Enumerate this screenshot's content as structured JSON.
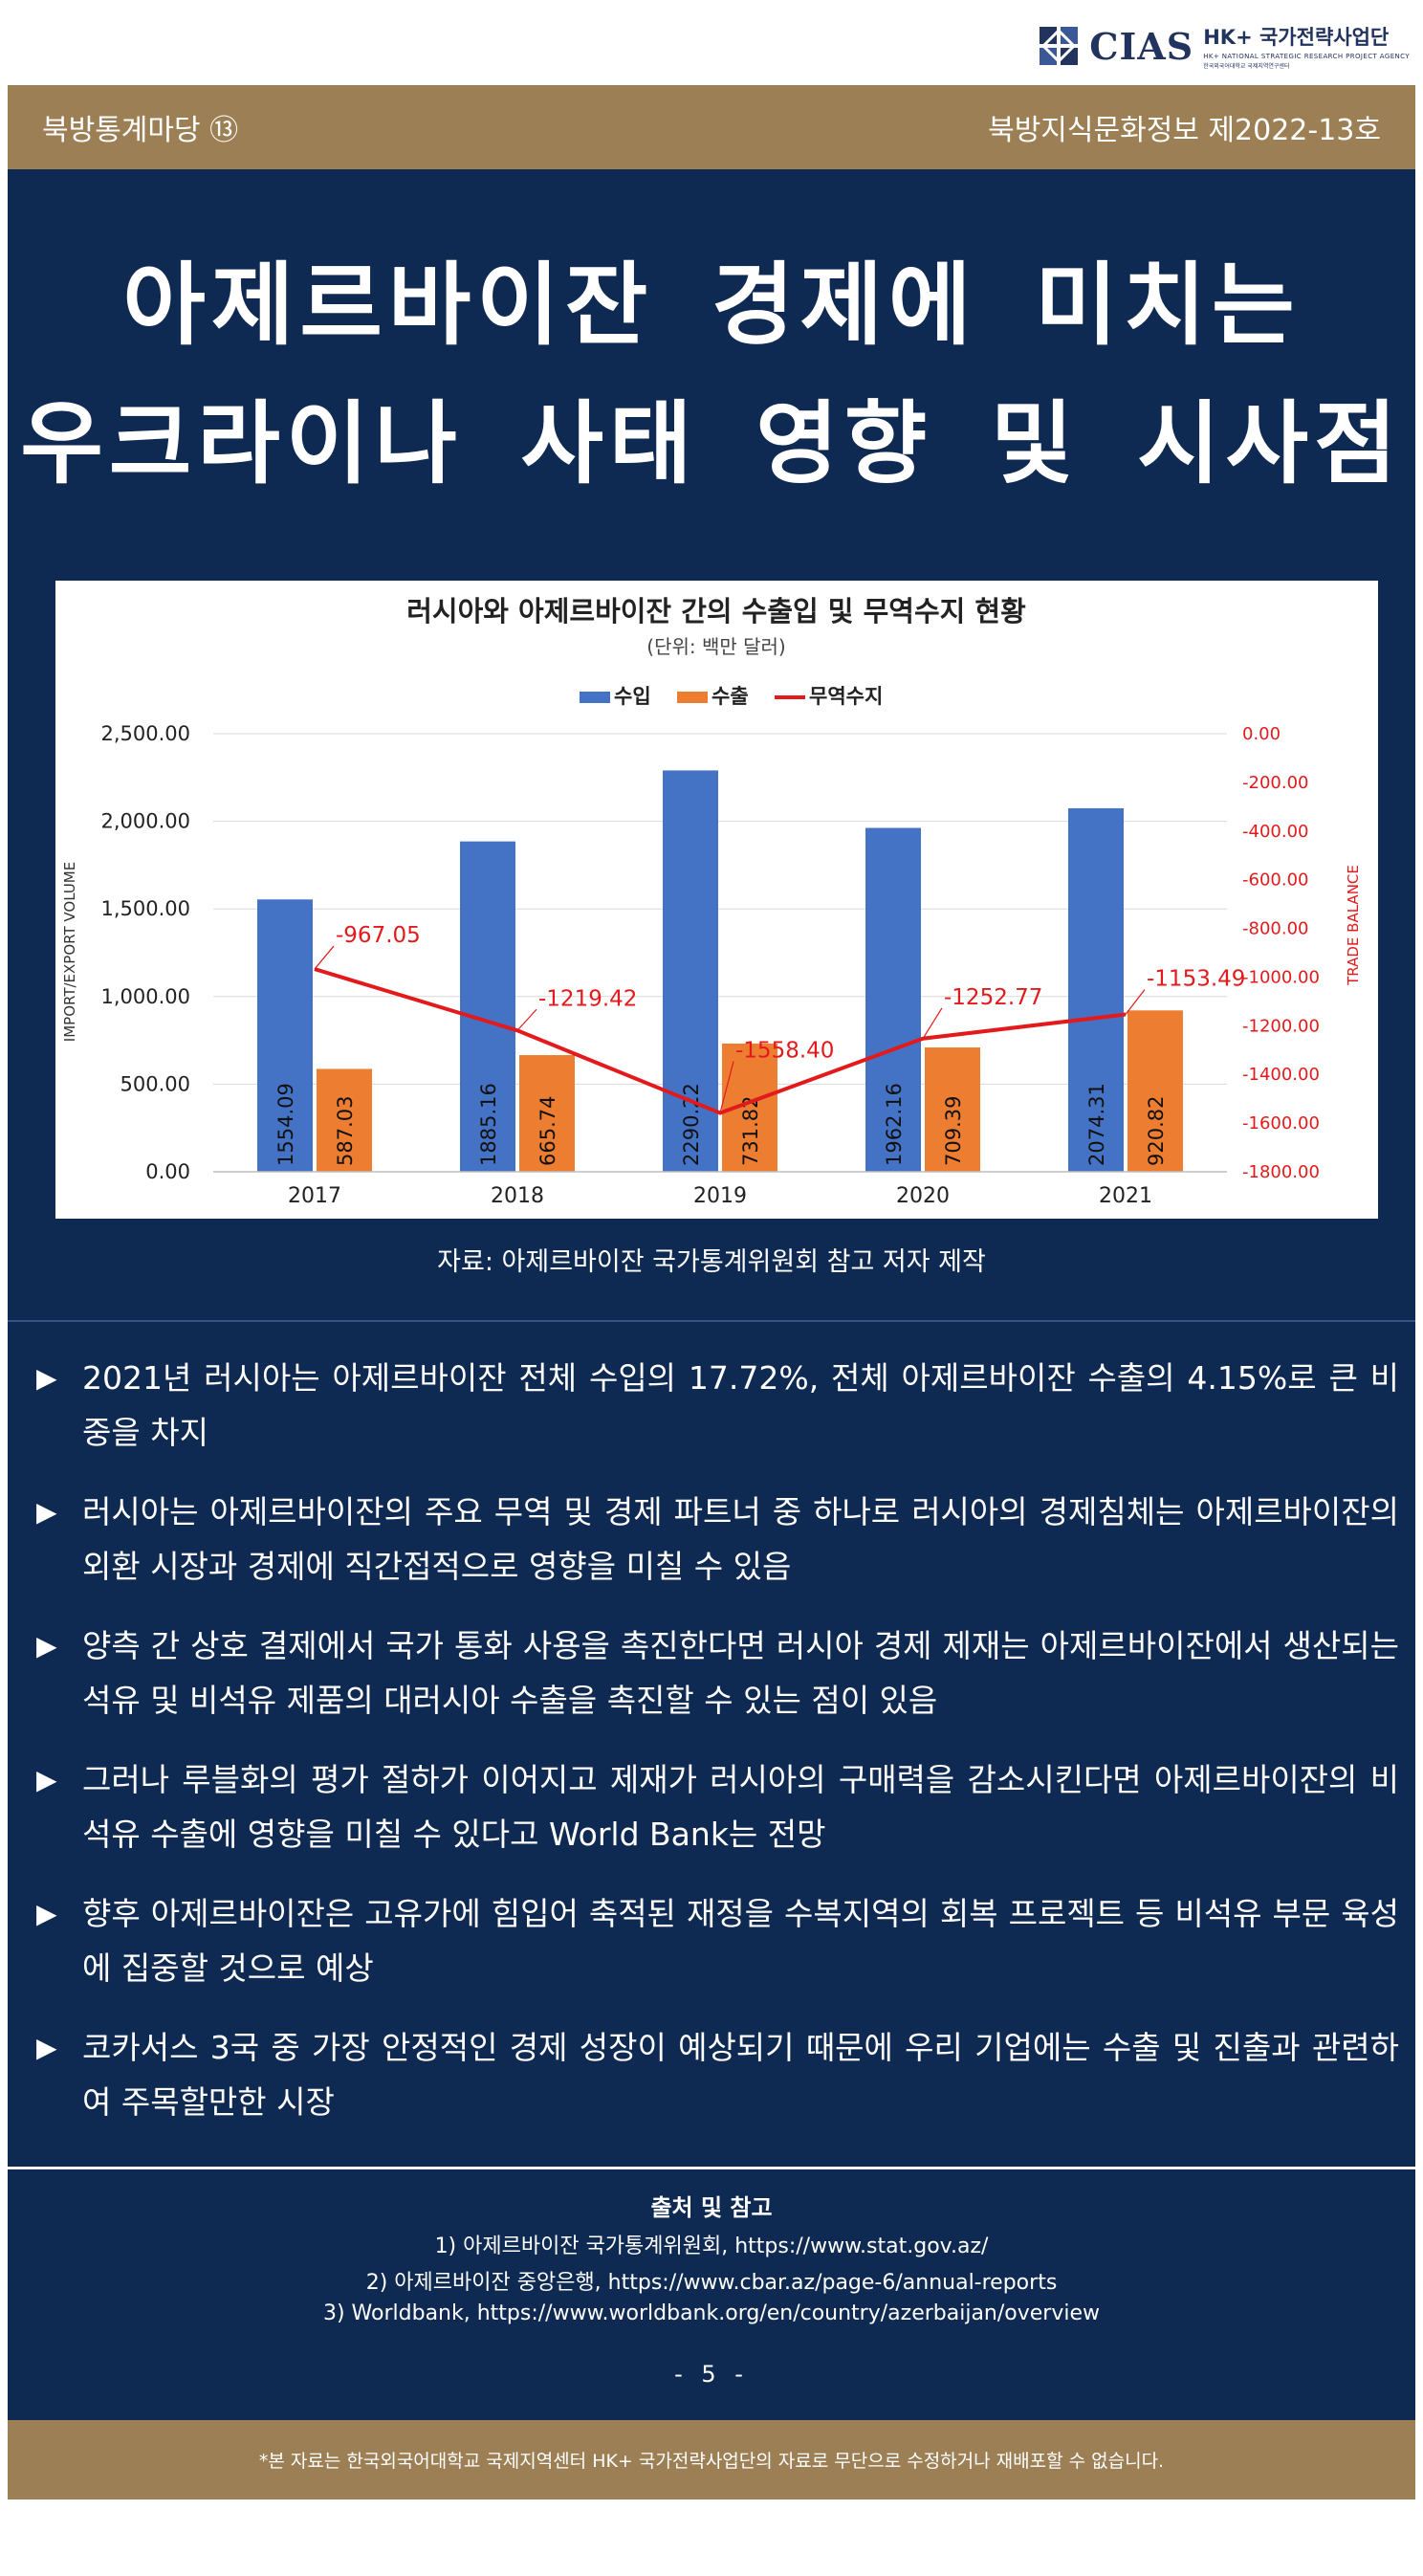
{
  "logo": {
    "brand": "CIAS",
    "name": "HK+ 국가전략사업단",
    "sub_en": "HK+ NATIONAL STRATEGIC RESEARCH PROJECT AGENCY",
    "sub_ko": "한국외국어대학교 국제지역연구센터"
  },
  "header": {
    "left": "북방통계마당 ⑬",
    "right": "북방지식문화정보 제2022-13호"
  },
  "title": {
    "line1": "아제르바이잔 경제에 미치는",
    "line2": "우크라이나 사태 영향 및 시사점"
  },
  "colors": {
    "navy": "#0f2a52",
    "gold": "#9c7f54",
    "import_bar": "#4472c4",
    "export_bar": "#ed7d31",
    "balance_line": "#e31a1c"
  },
  "chart_data": {
    "type": "bar",
    "title": "러시아와 아제르바이잔 간의 수출입 및 무역수지 현황",
    "subtitle": "(단위: 백만 달러)",
    "categories": [
      "2017",
      "2018",
      "2019",
      "2020",
      "2021"
    ],
    "series": [
      {
        "name": "수입",
        "type": "bar",
        "axis": "left",
        "values": [
          1554.09,
          1885.16,
          2290.22,
          1962.16,
          2074.31
        ]
      },
      {
        "name": "수출",
        "type": "bar",
        "axis": "left",
        "values": [
          587.03,
          665.74,
          731.82,
          709.39,
          920.82
        ]
      },
      {
        "name": "무역수지",
        "type": "line",
        "axis": "right",
        "values": [
          -967.05,
          -1219.42,
          -1558.4,
          -1252.77,
          -1153.49
        ]
      }
    ],
    "ylabel": "IMPORT/EXPORT VOLUME",
    "y2label": "TRADE BALANCE",
    "ylim": [
      0,
      2500
    ],
    "y2lim": [
      -1800,
      0
    ],
    "yticks": [
      "2,500.00",
      "2,000.00",
      "1,500.00",
      "1,000.00",
      "500.00",
      "0.00"
    ],
    "y2ticks": [
      "0.00",
      "-200.00",
      "-400.00",
      "-600.00",
      "-800.00",
      "-1000.00",
      "-1200.00",
      "-1400.00",
      "-1600.00",
      "-1800.00"
    ],
    "import_labels": [
      "1554.09",
      "1885.16",
      "2290.22",
      "1962.16",
      "2074.31"
    ],
    "export_labels": [
      "587.03",
      "665.74",
      "731.82",
      "709.39",
      "920.82"
    ],
    "balance_labels": [
      "-967.05",
      "-1219.42",
      "-1558.40",
      "-1252.77",
      "-1153.49"
    ],
    "legend": "top",
    "grid": true
  },
  "source": "자료: 아제르바이잔 국가통계위원회 참고 저자 제작",
  "bullets": [
    "2021년 러시아는 아제르바이잔 전체 수입의 17.72%, 전체 아제르바이잔 수출의 4.15%로 큰 비중을 차지",
    "러시아는 아제르바이잔의 주요 무역 및 경제 파트너 중 하나로 러시아의 경제침체는 아제르바이잔의 외환 시장과 경제에 직간접적으로 영향을 미칠 수 있음",
    "양측 간 상호 결제에서 국가 통화 사용을 촉진한다면 러시아 경제 제재는 아제르바이잔에서 생산되는 석유 및 비석유 제품의 대러시아 수출을 촉진할 수 있는 점이 있음",
    "그러나 루블화의 평가 절하가 이어지고 제재가 러시아의 구매력을 감소시킨다면 아제르바이잔의 비석유 수출에 영향을 미칠 수 있다고 World Bank는 전망",
    "향후 아제르바이잔은 고유가에 힘입어 축적된 재정을 수복지역의 회복 프로젝트 등 비석유 부문 육성에 집중할 것으로 예상",
    "코카서스 3국 중 가장 안정적인 경제 성장이 예상되기 때문에 우리 기업에는 수출 및 진출과 관련하여 주목할만한 시장"
  ],
  "bullet_marker": "▶",
  "references": {
    "title": "출처 및 참고",
    "items": [
      "1) 아제르바이잔 국가통계위원회, https://www.stat.gov.az/",
      "2) 아제르바이잔 중앙은행, https://www.cbar.az/page-6/annual-reports",
      "3) Worldbank, https://www.worldbank.org/en/country/azerbaijan/overview"
    ]
  },
  "page_number": "- 5 -",
  "footer": "*본 자료는 한국외국어대학교 국제지역센터 HK+ 국가전략사업단의 자료로 무단으로 수정하거나 재배포할 수 없습니다."
}
